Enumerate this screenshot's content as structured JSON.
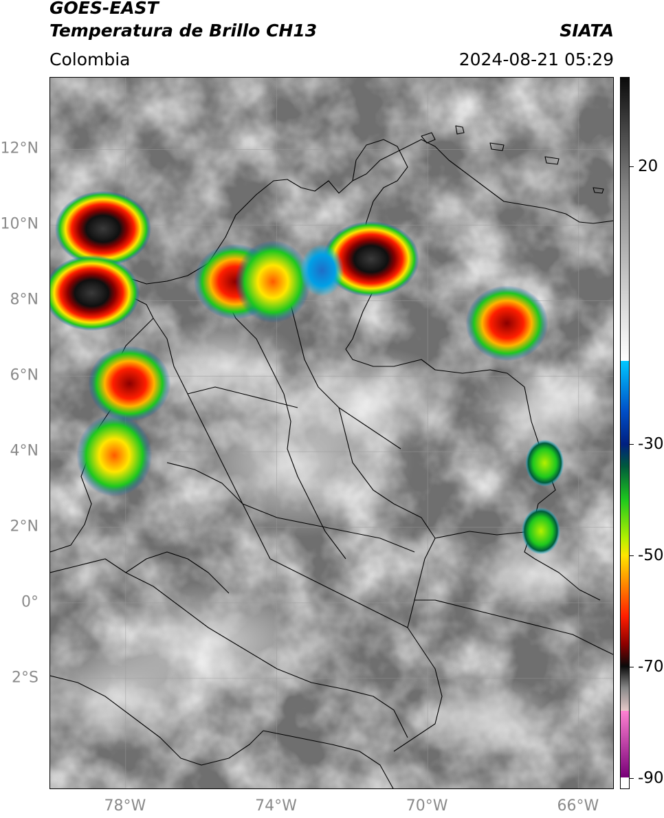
{
  "header": {
    "satellite": "GOES-EAST",
    "product": "Temperatura de Brillo CH13",
    "organization": "SIATA",
    "region": "Colombia",
    "datetime": "2024-08-21 05:29"
  },
  "map": {
    "lat_labels": [
      "12°N",
      "10°N",
      "8°N",
      "6°N",
      "4°N",
      "2°N",
      "0°",
      "2°S"
    ],
    "lon_labels": [
      "78°W",
      "74°W",
      "70°W",
      "66°W"
    ],
    "background_gray": "#6f6f6f",
    "convective_cells": [
      {
        "lon": -78.6,
        "lat": 9.9,
        "peak": "black"
      },
      {
        "lon": -78.9,
        "lat": 8.2,
        "peak": "black"
      },
      {
        "lon": -77.9,
        "lat": 5.8,
        "peak": "red"
      },
      {
        "lon": -78.3,
        "lat": 3.9,
        "peak": "orange"
      },
      {
        "lon": -75.1,
        "lat": 8.5,
        "peak": "red"
      },
      {
        "lon": -74.1,
        "lat": 8.5,
        "peak": "orange"
      },
      {
        "lon": -71.5,
        "lat": 9.1,
        "peak": "black"
      },
      {
        "lon": -67.9,
        "lat": 7.4,
        "peak": "red"
      },
      {
        "lon": -66.9,
        "lat": 3.7,
        "peak": "green"
      },
      {
        "lon": -67.0,
        "lat": 1.9,
        "peak": "green"
      },
      {
        "lon": -72.8,
        "lat": 8.8,
        "peak": "blue"
      }
    ]
  },
  "colorbar": {
    "ticks": [
      "20",
      "-30",
      "-50",
      "-70",
      "-90"
    ],
    "range": [
      -92,
      36
    ],
    "stops": [
      {
        "v": 36,
        "c": "#0a0a0a"
      },
      {
        "v": 28,
        "c": "#3d3d3d"
      },
      {
        "v": 15,
        "c": "#8a8a8a"
      },
      {
        "v": -5,
        "c": "#d9d9d9"
      },
      {
        "v": -15,
        "c": "#ffffff"
      },
      {
        "v": -15.01,
        "c": "#00c8ff"
      },
      {
        "v": -24,
        "c": "#0050c8"
      },
      {
        "v": -30,
        "c": "#002080"
      },
      {
        "v": -34,
        "c": "#005a3c"
      },
      {
        "v": -40,
        "c": "#1ec81e"
      },
      {
        "v": -47,
        "c": "#b4f000"
      },
      {
        "v": -50,
        "c": "#ffe600"
      },
      {
        "v": -55,
        "c": "#ff8c00"
      },
      {
        "v": -61,
        "c": "#ff1e00"
      },
      {
        "v": -66,
        "c": "#8c0000"
      },
      {
        "v": -70,
        "c": "#0a0a0a"
      },
      {
        "v": -74,
        "c": "#8a8a8a"
      },
      {
        "v": -78,
        "c": "#e6c8c8"
      },
      {
        "v": -78.01,
        "c": "#ff82d2"
      },
      {
        "v": -90,
        "c": "#780078"
      },
      {
        "v": -90.01,
        "c": "#ffffff"
      },
      {
        "v": -92,
        "c": "#ffffff"
      }
    ]
  }
}
